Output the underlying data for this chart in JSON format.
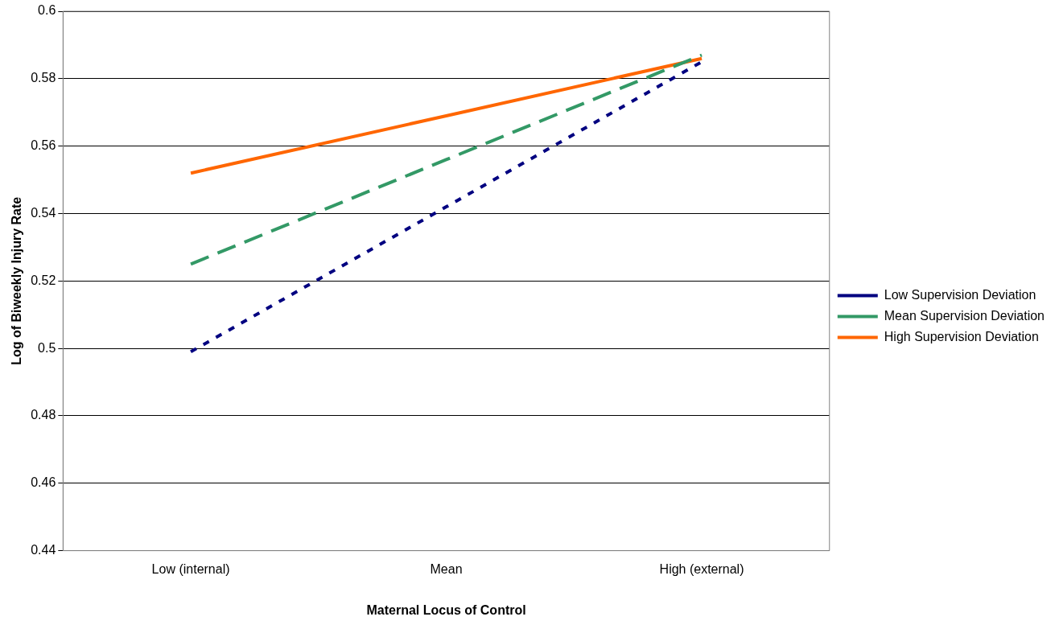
{
  "chart_data": {
    "type": "line",
    "xlabel": "Maternal Locus of Control",
    "ylabel": "Log of Biweekly Injury Rate",
    "categories": [
      "Low (internal)",
      "Mean",
      "High (external)"
    ],
    "series": [
      {
        "name": "Low Supervision Deviation",
        "color": "#000080",
        "line_style": "dotted",
        "values": [
          0.499,
          0.542,
          0.585
        ]
      },
      {
        "name": "Mean Supervision Deviation",
        "color": "#339966",
        "line_style": "dashed",
        "values": [
          0.525,
          0.556,
          0.587
        ]
      },
      {
        "name": "High Supervision Deviation",
        "color": "#ff6600",
        "line_style": "solid",
        "values": [
          0.552,
          0.569,
          0.586
        ]
      }
    ],
    "ylim": [
      0.44,
      0.6
    ],
    "yticks": [
      0.44,
      0.46,
      0.48,
      0.5,
      0.52,
      0.54,
      0.56,
      0.58,
      0.6
    ],
    "grid": "y",
    "legend": "right",
    "marker": "none"
  }
}
